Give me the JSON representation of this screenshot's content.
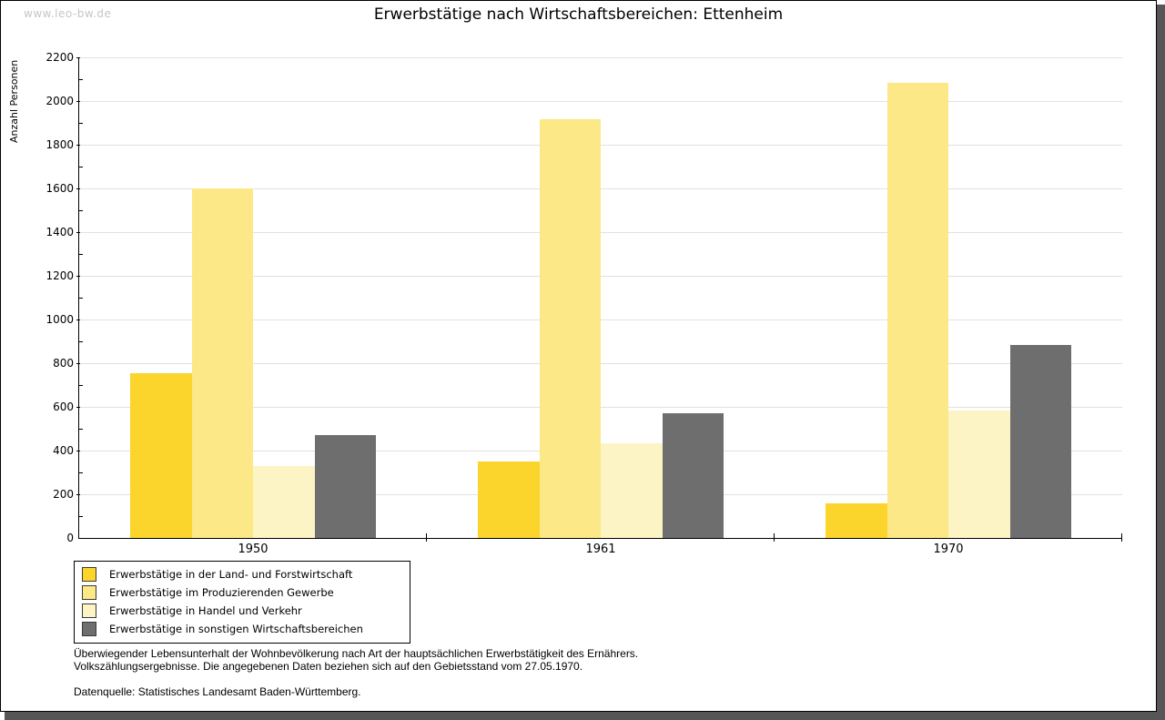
{
  "watermark": "www.leo-bw.de",
  "title": "Erwerbstätige nach Wirtschaftsbereichen: Ettenheim",
  "chart_data": {
    "type": "bar",
    "title": "Erwerbstätige nach Wirtschaftsbereichen: Ettenheim",
    "categories": [
      "1950",
      "1961",
      "1970"
    ],
    "series": [
      {
        "name": "Erwerbstätige in der Land- und Forstwirtschaft",
        "color": "#fbd42c",
        "values": [
          755,
          350,
          160
        ]
      },
      {
        "name": "Erwerbstätige im Produzierenden Gewerbe",
        "color": "#fce886",
        "values": [
          1600,
          1915,
          2085
        ]
      },
      {
        "name": "Erwerbstätige in Handel und Verkehr",
        "color": "#fcf4c4",
        "values": [
          330,
          435,
          585
        ]
      },
      {
        "name": "Erwerbstätige in sonstigen Wirtschaftsbereichen",
        "color": "#6e6e6e",
        "values": [
          470,
          570,
          885
        ]
      }
    ],
    "xlabel": "",
    "ylabel": "Anzahl Personen",
    "ylim": [
      0,
      2200
    ],
    "ytick_step": 200,
    "yminortick_step": 100,
    "grid": true,
    "gridline_color": "#e1e1e1",
    "legend_position": "bottom-left"
  },
  "notes": {
    "line1": "Überwiegender Lebensunterhalt der Wohnbevölkerung nach Art der hauptsächlichen Erwerbstätigkeit des Ernährers.",
    "line2": "Volkszählungsergebnisse. Die angegebenen Daten beziehen sich auf den Gebietsstand vom 27.05.1970.",
    "source": "Datenquelle: Statistisches Landesamt Baden-Württemberg."
  }
}
